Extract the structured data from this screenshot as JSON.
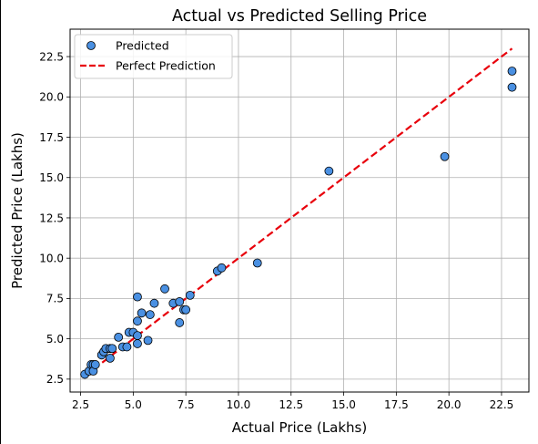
{
  "chart_data": {
    "type": "scatter",
    "title": "Actual vs Predicted Selling Price",
    "xlabel": "Actual Price (Lakhs)",
    "ylabel": "Predicted Price (Lakhs)",
    "xlim": [
      2.0,
      23.8
    ],
    "ylim": [
      1.7,
      24.2
    ],
    "x_ticks": [
      2.5,
      5.0,
      7.5,
      10.0,
      12.5,
      15.0,
      17.5,
      20.0,
      22.5
    ],
    "x_tick_labels": [
      "2.5",
      "5.0",
      "7.5",
      "10.0",
      "12.5",
      "15.0",
      "17.5",
      "20.0",
      "22.5"
    ],
    "y_ticks": [
      2.5,
      5.0,
      7.5,
      10.0,
      12.5,
      15.0,
      17.5,
      20.0,
      22.5
    ],
    "y_tick_labels": [
      "2.5",
      "5.0",
      "7.5",
      "10.0",
      "12.5",
      "15.0",
      "17.5",
      "20.0",
      "22.5"
    ],
    "grid": true,
    "legend_position": "top-left",
    "series": [
      {
        "name": "Predicted",
        "kind": "scatter",
        "color": "#4a90e2",
        "edge_color": "#000000",
        "points": [
          [
            2.7,
            2.8
          ],
          [
            2.9,
            3.0
          ],
          [
            3.0,
            3.4
          ],
          [
            3.1,
            3.4
          ],
          [
            3.1,
            3.0
          ],
          [
            3.2,
            3.4
          ],
          [
            3.5,
            4.0
          ],
          [
            3.6,
            4.2
          ],
          [
            3.7,
            4.4
          ],
          [
            3.9,
            4.4
          ],
          [
            3.9,
            3.8
          ],
          [
            4.0,
            4.4
          ],
          [
            4.3,
            5.1
          ],
          [
            4.5,
            4.5
          ],
          [
            4.7,
            4.5
          ],
          [
            4.8,
            5.4
          ],
          [
            5.0,
            5.4
          ],
          [
            5.2,
            5.2
          ],
          [
            5.2,
            4.7
          ],
          [
            5.2,
            6.1
          ],
          [
            5.2,
            7.6
          ],
          [
            5.4,
            6.6
          ],
          [
            5.7,
            4.9
          ],
          [
            5.8,
            6.5
          ],
          [
            6.0,
            7.2
          ],
          [
            6.5,
            8.1
          ],
          [
            6.9,
            7.2
          ],
          [
            7.2,
            6.0
          ],
          [
            7.2,
            7.3
          ],
          [
            7.4,
            6.8
          ],
          [
            7.5,
            6.8
          ],
          [
            7.7,
            7.7
          ],
          [
            9.0,
            9.2
          ],
          [
            9.2,
            9.4
          ],
          [
            10.9,
            9.7
          ],
          [
            14.3,
            15.4
          ],
          [
            19.8,
            16.3
          ],
          [
            23.0,
            21.6
          ],
          [
            23.0,
            20.6
          ]
        ]
      },
      {
        "name": "Perfect Prediction",
        "kind": "line",
        "color": "#e8000b",
        "style": "dashed",
        "x": [
          2.7,
          23.0
        ],
        "y": [
          2.7,
          23.0
        ]
      }
    ]
  }
}
